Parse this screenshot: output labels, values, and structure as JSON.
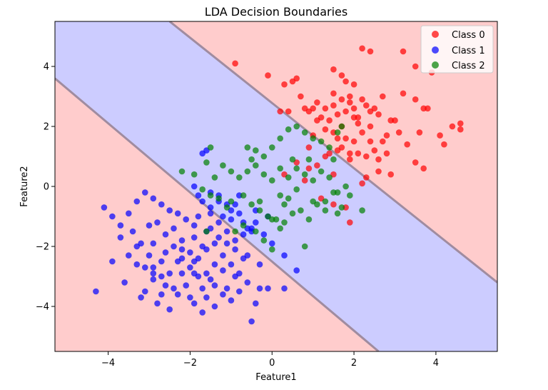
{
  "chart_data": {
    "type": "scatter",
    "title": "LDA Decision Boundaries",
    "xlabel": "Feature1",
    "ylabel": "Feature2",
    "xlim": [
      -5.3,
      5.5
    ],
    "ylim": [
      -5.5,
      5.5
    ],
    "xticks": [
      -4,
      -2,
      0,
      2,
      4
    ],
    "yticks": [
      -4,
      -2,
      0,
      2,
      4
    ],
    "xtick_labels": [
      "−4",
      "−2",
      "0",
      "2",
      "4"
    ],
    "ytick_labels": [
      "−4",
      "−2",
      "0",
      "2",
      "4"
    ],
    "regions": {
      "upper_boundary": [
        [
          -2.5,
          5.5
        ],
        [
          5.5,
          -3.2
        ]
      ],
      "lower_boundary": [
        [
          -5.3,
          3.6
        ],
        [
          2.6,
          -5.5
        ]
      ],
      "class0_color": "#ffcccc",
      "class1_color": "#ccccff",
      "boundary_color": "#a08ca0"
    },
    "legend": {
      "location": "upper right"
    },
    "series": [
      {
        "name": "Class 0",
        "color": "#ff0000",
        "points": [
          [
            -0.9,
            4.1
          ],
          [
            -0.1,
            3.7
          ],
          [
            0.3,
            3.4
          ],
          [
            0.5,
            3.5
          ],
          [
            0.6,
            3.6
          ],
          [
            0.2,
            2.5
          ],
          [
            0.4,
            2.5
          ],
          [
            0.7,
            3.0
          ],
          [
            0.8,
            2.6
          ],
          [
            0.9,
            2.5
          ],
          [
            1.0,
            2.6
          ],
          [
            1.1,
            2.8
          ],
          [
            1.2,
            2.3
          ],
          [
            1.3,
            2.6
          ],
          [
            1.4,
            2.2
          ],
          [
            1.5,
            2.7
          ],
          [
            1.6,
            2.4
          ],
          [
            1.7,
            2.9
          ],
          [
            1.8,
            2.5
          ],
          [
            1.9,
            2.8
          ],
          [
            2.0,
            2.6
          ],
          [
            2.1,
            2.3
          ],
          [
            2.2,
            2.9
          ],
          [
            2.3,
            2.7
          ],
          [
            2.4,
            2.5
          ],
          [
            2.5,
            2.6
          ],
          [
            2.6,
            2.4
          ],
          [
            2.7,
            3.0
          ],
          [
            2.8,
            1.7
          ],
          [
            3.0,
            2.2
          ],
          [
            3.1,
            1.8
          ],
          [
            3.2,
            3.1
          ],
          [
            3.3,
            1.4
          ],
          [
            3.5,
            2.9
          ],
          [
            3.6,
            1.8
          ],
          [
            3.7,
            2.6
          ],
          [
            3.8,
            2.6
          ],
          [
            3.5,
            0.8
          ],
          [
            3.7,
            0.6
          ],
          [
            4.1,
            1.7
          ],
          [
            4.2,
            1.4
          ],
          [
            4.4,
            2.0
          ],
          [
            4.6,
            2.1
          ],
          [
            4.6,
            1.9
          ],
          [
            3.9,
            3.8
          ],
          [
            3.5,
            4.0
          ],
          [
            3.2,
            4.5
          ],
          [
            2.4,
            4.5
          ],
          [
            2.2,
            4.6
          ],
          [
            1.5,
            3.9
          ],
          [
            1.7,
            3.7
          ],
          [
            1.5,
            3.1
          ],
          [
            1.8,
            3.5
          ],
          [
            2.0,
            3.4
          ],
          [
            1.9,
            3.0
          ],
          [
            0.9,
            1.3
          ],
          [
            1.0,
            1.7
          ],
          [
            1.1,
            2.2
          ],
          [
            1.3,
            1.9
          ],
          [
            1.4,
            1.1
          ],
          [
            1.5,
            1.8
          ],
          [
            1.6,
            1.2
          ],
          [
            1.7,
            2.0
          ],
          [
            1.8,
            1.6
          ],
          [
            1.9,
            1.1
          ],
          [
            2.0,
            1.5
          ],
          [
            2.1,
            1.1
          ],
          [
            2.2,
            1.8
          ],
          [
            2.3,
            1.0
          ],
          [
            2.4,
            1.5
          ],
          [
            2.5,
            1.2
          ],
          [
            2.6,
            0.9
          ],
          [
            2.7,
            1.5
          ],
          [
            2.8,
            1.1
          ],
          [
            2.9,
            0.4
          ],
          [
            2.6,
            0.5
          ],
          [
            2.3,
            0.3
          ],
          [
            2.2,
            0.1
          ],
          [
            1.9,
            0.9
          ],
          [
            1.7,
            1.3
          ],
          [
            1.5,
            0.4
          ],
          [
            1.3,
            1.0
          ],
          [
            1.1,
            0.7
          ],
          [
            0.9,
            0.6
          ],
          [
            0.8,
            0.2
          ],
          [
            0.6,
            0.8
          ],
          [
            0.3,
            0.4
          ],
          [
            1.2,
            -0.4
          ],
          [
            1.5,
            -0.6
          ],
          [
            1.8,
            -0.7
          ],
          [
            1.9,
            -1.2
          ],
          [
            1.6,
            1.6
          ],
          [
            2.1,
            2.1
          ],
          [
            2.4,
            2.0
          ],
          [
            2.0,
            2.3
          ],
          [
            2.9,
            2.2
          ]
        ]
      },
      {
        "name": "Class 1",
        "color": "#0000ff",
        "points": [
          [
            -1.7,
            1.1
          ],
          [
            -1.6,
            1.2
          ],
          [
            -1.9,
            0.0
          ],
          [
            -1.7,
            -0.5
          ],
          [
            -1.5,
            -0.7
          ],
          [
            -1.3,
            -0.5
          ],
          [
            -1.1,
            -0.6
          ],
          [
            -1.0,
            -0.8
          ],
          [
            -0.9,
            -0.6
          ],
          [
            -0.8,
            -0.9
          ],
          [
            -0.7,
            -1.2
          ],
          [
            -0.6,
            -1.4
          ],
          [
            -0.5,
            -1.5
          ],
          [
            -0.4,
            -1.2
          ],
          [
            -0.2,
            -1.6
          ],
          [
            -0.1,
            -1.0
          ],
          [
            0.0,
            -1.9
          ],
          [
            0.3,
            -2.3
          ],
          [
            0.6,
            -2.8
          ],
          [
            -1.5,
            -0.9
          ],
          [
            -1.3,
            -0.3
          ],
          [
            -2.2,
            -2.9
          ],
          [
            -2.4,
            -3.4
          ],
          [
            -2.0,
            -3.7
          ],
          [
            -1.8,
            -3.0
          ],
          [
            -2.7,
            -2.5
          ],
          [
            -2.9,
            -3.1
          ],
          [
            -3.1,
            -2.7
          ],
          [
            -3.3,
            -2.0
          ],
          [
            -3.5,
            -2.3
          ],
          [
            -3.7,
            -1.7
          ],
          [
            -3.9,
            -2.5
          ],
          [
            -4.3,
            -3.5
          ],
          [
            -3.6,
            -3.2
          ],
          [
            -3.2,
            -3.7
          ],
          [
            -2.8,
            -3.9
          ],
          [
            -2.5,
            -4.1
          ],
          [
            -2.1,
            -3.3
          ],
          [
            -1.9,
            -2.5
          ],
          [
            -1.6,
            -2.9
          ],
          [
            -1.4,
            -3.3
          ],
          [
            -1.2,
            -3.6
          ],
          [
            -1.0,
            -3.8
          ],
          [
            -0.8,
            -3.5
          ],
          [
            -0.6,
            -3.2
          ],
          [
            -0.5,
            -4.5
          ],
          [
            -0.3,
            -3.4
          ],
          [
            -0.1,
            -3.4
          ],
          [
            -0.3,
            -2.6
          ],
          [
            -0.6,
            -2.3
          ],
          [
            -0.9,
            -2.1
          ],
          [
            -1.1,
            -1.9
          ],
          [
            -1.3,
            -1.7
          ],
          [
            -1.6,
            -1.5
          ],
          [
            -1.9,
            -1.3
          ],
          [
            -2.1,
            -1.1
          ],
          [
            -2.3,
            -0.9
          ],
          [
            -2.5,
            -0.8
          ],
          [
            -2.7,
            -0.6
          ],
          [
            -2.9,
            -0.4
          ],
          [
            -3.1,
            -0.2
          ],
          [
            -3.3,
            -0.5
          ],
          [
            -3.5,
            -0.9
          ],
          [
            -3.7,
            -1.3
          ],
          [
            -3.9,
            -1.0
          ],
          [
            -4.1,
            -0.7
          ],
          [
            -2.8,
            -1.2
          ],
          [
            -2.6,
            -1.6
          ],
          [
            -2.4,
            -2.0
          ],
          [
            -2.2,
            -1.8
          ],
          [
            -2.0,
            -2.2
          ],
          [
            -1.8,
            -2.4
          ],
          [
            -1.6,
            -2.1
          ],
          [
            -1.4,
            -1.9
          ],
          [
            -1.2,
            -2.3
          ],
          [
            -1.0,
            -2.6
          ],
          [
            -0.8,
            -2.9
          ],
          [
            -0.7,
            -2.4
          ],
          [
            -1.5,
            -3.1
          ],
          [
            -1.7,
            -3.4
          ],
          [
            -1.9,
            -3.9
          ],
          [
            -2.3,
            -3.6
          ],
          [
            -2.6,
            -3.3
          ],
          [
            -2.9,
            -2.9
          ],
          [
            -3.0,
            -2.3
          ],
          [
            -3.2,
            -1.9
          ],
          [
            -3.4,
            -1.5
          ],
          [
            -2.9,
            -1.9
          ],
          [
            -2.6,
            -2.2
          ],
          [
            -2.3,
            -2.5
          ],
          [
            -2.0,
            -2.7
          ],
          [
            -1.7,
            -2.0
          ],
          [
            -1.5,
            -1.4
          ],
          [
            -1.3,
            -1.2
          ],
          [
            -1.1,
            -1.5
          ],
          [
            -0.9,
            -1.8
          ],
          [
            -0.7,
            -1.6
          ],
          [
            -1.2,
            -2.8
          ],
          [
            -1.4,
            -4.0
          ],
          [
            -1.7,
            -4.2
          ],
          [
            -0.4,
            -3.9
          ],
          [
            0.3,
            -3.4
          ],
          [
            -2.7,
            -3.6
          ],
          [
            -3.1,
            -3.5
          ],
          [
            -2.5,
            -2.9
          ],
          [
            -2.2,
            -2.4
          ],
          [
            -1.9,
            -1.7
          ],
          [
            -1.4,
            -2.6
          ],
          [
            -0.9,
            -3.0
          ],
          [
            -3.0,
            -1.3
          ],
          [
            -2.4,
            -1.4
          ],
          [
            -1.8,
            -1.0
          ],
          [
            -1.0,
            -1.1
          ],
          [
            -0.4,
            -0.8
          ],
          [
            -0.5,
            -1.4
          ],
          [
            -1.5,
            -0.2
          ],
          [
            -1.8,
            -0.3
          ],
          [
            -1.2,
            -1.0
          ],
          [
            -0.8,
            -0.3
          ],
          [
            -2.7,
            -3.0
          ],
          [
            -3.3,
            -2.6
          ],
          [
            -2.9,
            -2.7
          ],
          [
            -2.2,
            -2.1
          ],
          [
            -1.9,
            -2.9
          ],
          [
            -1.6,
            -3.7
          ],
          [
            -1.1,
            -3.4
          ]
        ]
      },
      {
        "name": "Class 2",
        "color": "#008000",
        "points": [
          [
            -1.5,
            1.3
          ],
          [
            -0.6,
            1.3
          ],
          [
            -0.4,
            1.2
          ],
          [
            -0.2,
            1.0
          ],
          [
            0.0,
            1.3
          ],
          [
            0.2,
            1.6
          ],
          [
            0.4,
            1.9
          ],
          [
            0.6,
            2.0
          ],
          [
            0.8,
            1.8
          ],
          [
            1.0,
            1.6
          ],
          [
            1.2,
            1.5
          ],
          [
            1.4,
            1.3
          ],
          [
            1.6,
            1.8
          ],
          [
            1.7,
            2.0
          ],
          [
            -2.2,
            0.5
          ],
          [
            -1.9,
            0.4
          ],
          [
            -1.6,
            0.8
          ],
          [
            -1.4,
            0.3
          ],
          [
            -1.2,
            0.7
          ],
          [
            -1.0,
            0.5
          ],
          [
            -0.8,
            0.3
          ],
          [
            -0.6,
            0.5
          ],
          [
            -0.4,
            0.7
          ],
          [
            -0.2,
            0.4
          ],
          [
            0.0,
            0.2
          ],
          [
            0.2,
            0.6
          ],
          [
            0.4,
            0.3
          ],
          [
            0.6,
            0.6
          ],
          [
            0.8,
            0.4
          ],
          [
            1.0,
            0.2
          ],
          [
            1.2,
            0.5
          ],
          [
            1.4,
            0.3
          ],
          [
            1.6,
            -0.2
          ],
          [
            -1.7,
            -0.1
          ],
          [
            -1.5,
            -0.3
          ],
          [
            -1.3,
            -0.4
          ],
          [
            -1.0,
            -0.5
          ],
          [
            -0.7,
            -0.3
          ],
          [
            -0.5,
            -0.6
          ],
          [
            -0.3,
            -0.8
          ],
          [
            -0.1,
            -1.0
          ],
          [
            0.1,
            -1.1
          ],
          [
            0.3,
            -1.2
          ],
          [
            0.5,
            -0.9
          ],
          [
            0.7,
            -0.8
          ],
          [
            0.9,
            -1.1
          ],
          [
            1.1,
            -0.6
          ],
          [
            1.3,
            -0.5
          ],
          [
            1.5,
            -0.2
          ],
          [
            1.7,
            -0.7
          ],
          [
            1.9,
            -0.3
          ],
          [
            2.2,
            -0.8
          ],
          [
            -1.1,
            -0.7
          ],
          [
            -0.9,
            -1.5
          ],
          [
            -0.7,
            -1.3
          ],
          [
            -0.4,
            -1.5
          ],
          [
            -0.2,
            -1.8
          ],
          [
            0.0,
            -2.1
          ],
          [
            0.2,
            -1.4
          ],
          [
            0.8,
            -2.0
          ],
          [
            0.4,
            -0.4
          ],
          [
            0.6,
            -0.1
          ],
          [
            0.2,
            -0.3
          ],
          [
            -0.3,
            -0.5
          ],
          [
            1.0,
            -0.5
          ],
          [
            1.3,
            -0.8
          ],
          [
            -1.6,
            -1.5
          ],
          [
            1.8,
            0.0
          ],
          [
            1.6,
            -0.9
          ],
          [
            0.9,
            0.9
          ],
          [
            -0.5,
            0.9
          ],
          [
            0.5,
            0.9
          ],
          [
            1.5,
            0.9
          ],
          [
            0.3,
            -0.6
          ],
          [
            0.0,
            -1.1
          ]
        ]
      }
    ]
  }
}
